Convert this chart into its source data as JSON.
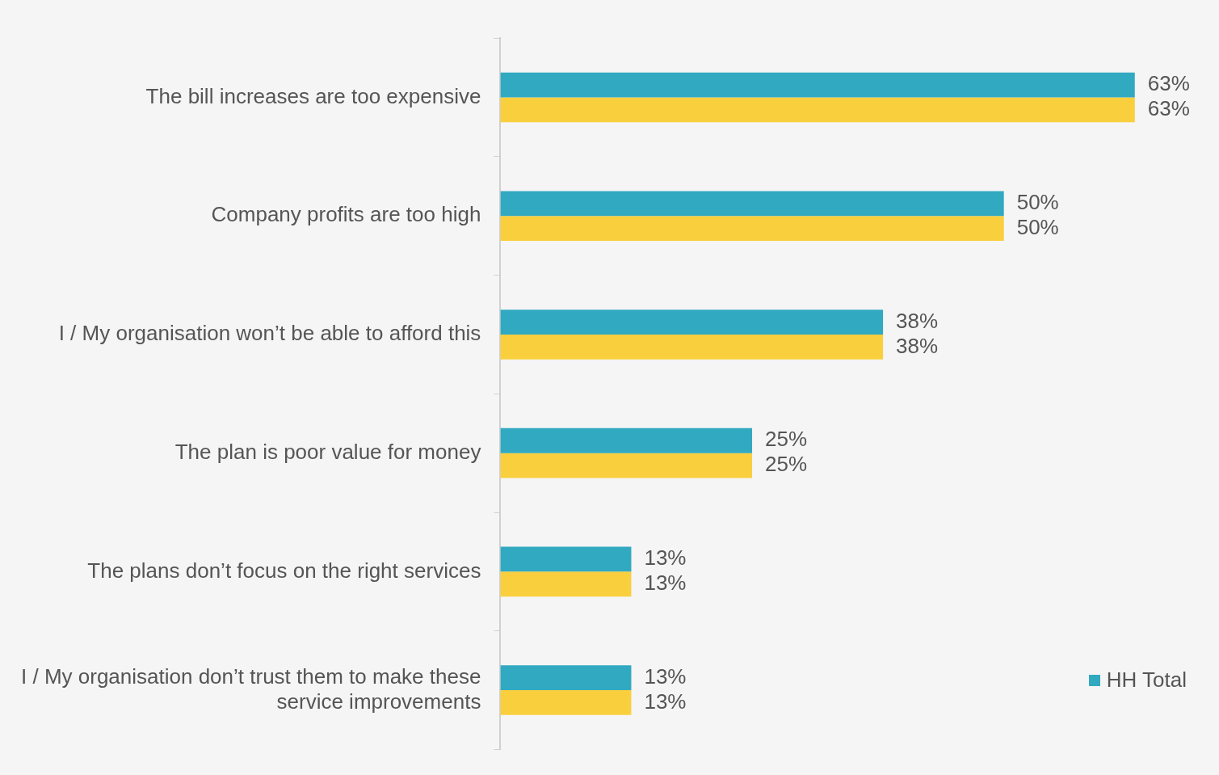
{
  "chart_data": {
    "type": "bar",
    "orientation": "horizontal",
    "categories": [
      "The bill increases are too expensive",
      "Company profits are too high",
      "I / My organisation won’t be able to afford this",
      "The plan is poor value for money",
      "The plans don’t focus on the right services",
      "I / My organisation don’t trust them to make these service improvements"
    ],
    "series": [
      {
        "name": "HH Total",
        "color": "#31a9c1",
        "values": [
          63,
          50,
          38,
          25,
          13,
          13
        ],
        "value_labels": [
          "63%",
          "50%",
          "38%",
          "25%",
          "13%",
          "13%"
        ]
      },
      {
        "color": "#f9cf3d",
        "values": [
          63,
          50,
          38,
          25,
          13,
          13
        ],
        "value_labels": [
          "63%",
          "50%",
          "38%",
          "25%",
          "13%",
          "13%"
        ]
      }
    ],
    "legend": "bottom right"
  }
}
